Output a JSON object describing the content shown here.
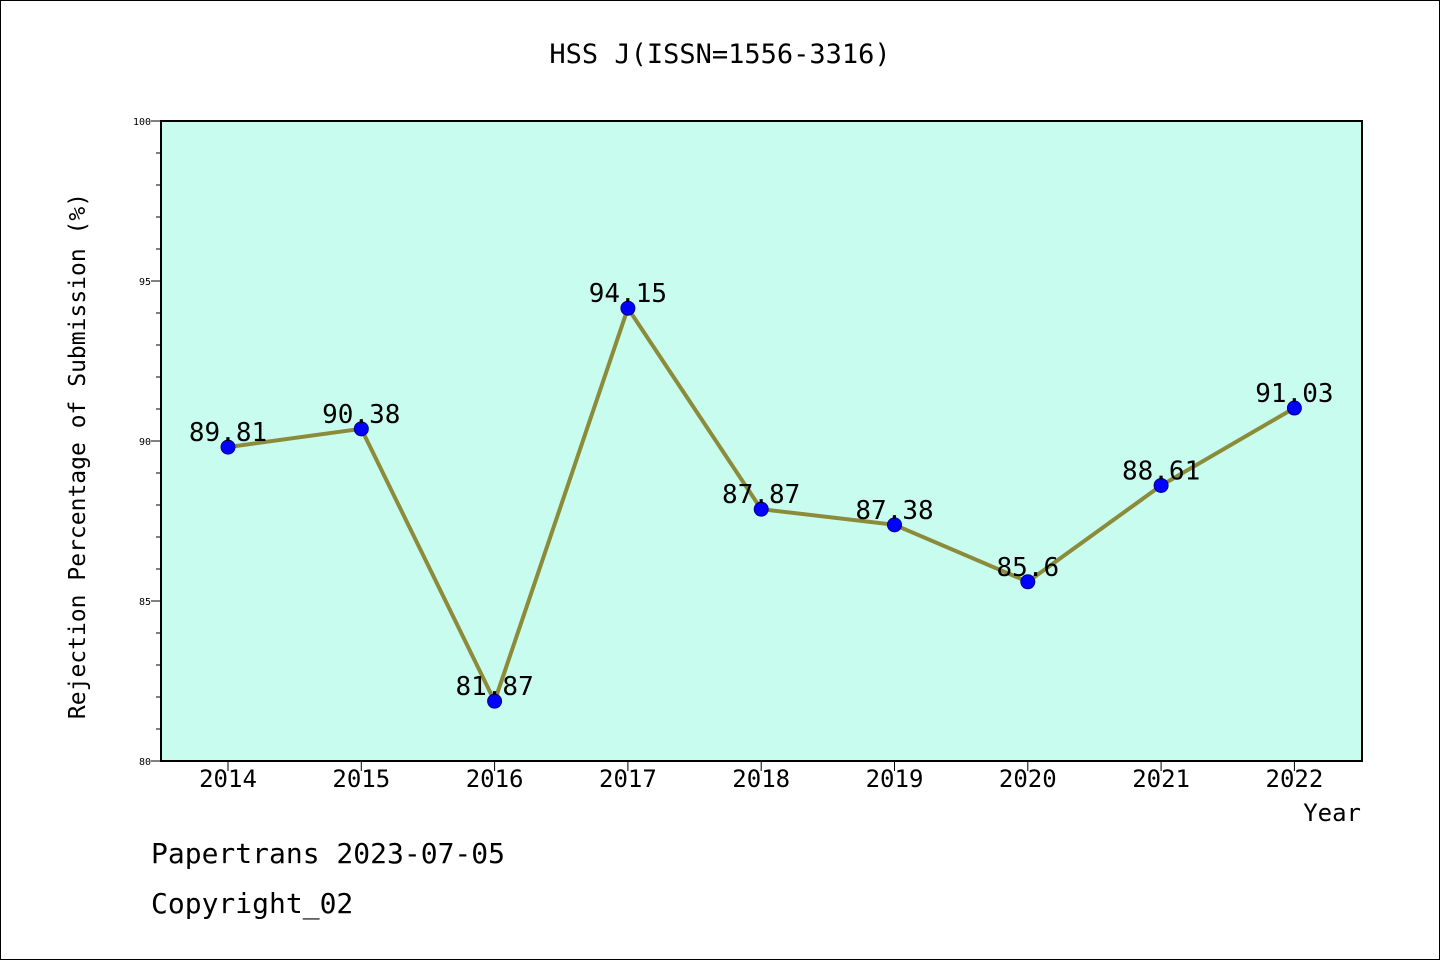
{
  "chart_data": {
    "type": "line",
    "title": "HSS J(ISSN=1556-3316)",
    "xlabel": "Year",
    "ylabel": "Rejection Percentage of Submission (%)",
    "categories": [
      "2014",
      "2015",
      "2016",
      "2017",
      "2018",
      "2019",
      "2020",
      "2021",
      "2022"
    ],
    "values": [
      89.81,
      90.38,
      81.87,
      94.15,
      87.87,
      87.38,
      85.6,
      88.61,
      91.03
    ],
    "value_labels": [
      "89.81",
      "90.38",
      "81.87",
      "94.15",
      "87.87",
      "87.38",
      "85.6",
      "88.61",
      "91.03"
    ],
    "ylim": [
      80,
      100
    ],
    "y_ticks": [
      "80",
      "85",
      "90",
      "95",
      "100"
    ],
    "grid": false,
    "colors": {
      "plot_background": "#c8fcee",
      "line": "#8b8b3a",
      "marker": "#0000ff"
    }
  },
  "footer": {
    "source": "Papertrans 2023-07-05",
    "copyright": "Copyright_02"
  }
}
